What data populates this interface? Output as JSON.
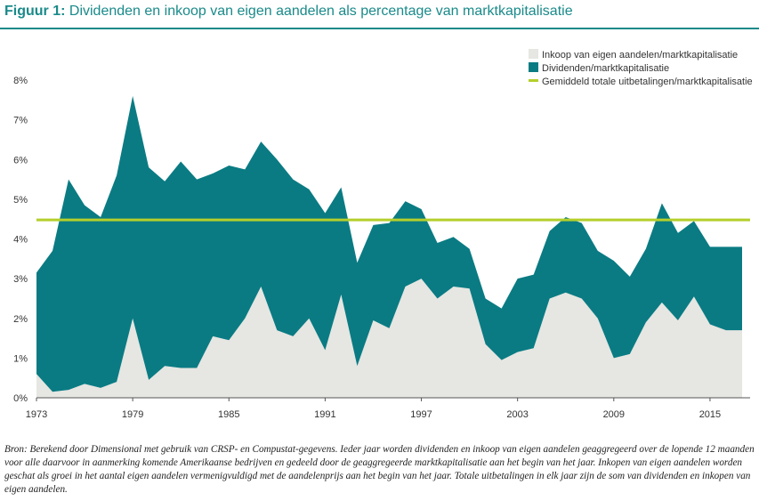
{
  "figure": {
    "number": "Figuur 1:",
    "title": "Dividenden en inkoop van eigen aandelen als percentage van marktkapitalisatie",
    "source": "Bron: Berekend door Dimensional met gebruik van CRSP- en Compustat-gegevens. Ieder jaar worden dividenden en inkoop van eigen aandelen geaggregeerd over de lopende 12 maanden voor alle daarvoor in aanmerking komende Amerikaanse bedrijven en gedeeld door de geaggregeerde marktkapitalisatie aan het begin van het jaar. Inkopen van eigen aandelen worden geschat als groei in het aantal eigen aandelen vermenigvuldigd met de aandelenprijs aan het begin van het jaar. Totale uitbetalingen in elk jaar zijn de som van dividenden en inkopen van eigen aandelen."
  },
  "chart_data": {
    "type": "area",
    "stacked": true,
    "x": [
      1973,
      1974,
      1975,
      1976,
      1977,
      1978,
      1979,
      1980,
      1981,
      1982,
      1983,
      1984,
      1985,
      1986,
      1987,
      1988,
      1989,
      1990,
      1991,
      1992,
      1993,
      1994,
      1995,
      1996,
      1997,
      1998,
      1999,
      2000,
      2001,
      2002,
      2003,
      2004,
      2005,
      2006,
      2007,
      2008,
      2009,
      2010,
      2011,
      2012,
      2013,
      2014,
      2015,
      2016,
      2017
    ],
    "xlim": [
      1973,
      2017.5
    ],
    "ylim": [
      0,
      8
    ],
    "x_ticks": [
      1973,
      1979,
      1985,
      1991,
      1997,
      2003,
      2009,
      2015
    ],
    "y_ticks": [
      0,
      1,
      2,
      3,
      4,
      5,
      6,
      7,
      8
    ],
    "y_tick_labels": [
      "0%",
      "1%",
      "2%",
      "3%",
      "4%",
      "5%",
      "6%",
      "7%",
      "8%"
    ],
    "legend_position": "top-right",
    "grid": false,
    "series": [
      {
        "name": "Inkoop van eigen aandelen/marktkapitalisatie",
        "color": "#e6e6e2",
        "values": [
          0.6,
          0.15,
          0.2,
          0.35,
          0.25,
          0.4,
          2.0,
          0.45,
          0.8,
          0.75,
          0.75,
          1.55,
          1.45,
          2.0,
          2.8,
          1.7,
          1.55,
          2.0,
          1.2,
          2.6,
          0.8,
          1.95,
          1.75,
          2.8,
          3.0,
          2.5,
          2.8,
          2.75,
          1.35,
          0.95,
          1.15,
          1.25,
          2.5,
          2.65,
          2.5,
          2.0,
          1.0,
          1.1,
          1.9,
          2.4,
          1.95,
          2.55,
          1.85,
          1.7,
          1.7
        ]
      },
      {
        "name": "Dividenden/marktkapitalisatie",
        "color": "#0a7b83",
        "values": [
          2.55,
          3.55,
          5.3,
          4.5,
          4.3,
          5.2,
          5.6,
          5.35,
          4.65,
          5.2,
          4.75,
          4.1,
          4.4,
          3.75,
          3.65,
          4.3,
          3.95,
          3.25,
          3.45,
          2.7,
          2.6,
          2.4,
          2.65,
          2.15,
          1.75,
          1.4,
          1.25,
          1.0,
          1.15,
          1.3,
          1.85,
          1.85,
          1.7,
          1.9,
          1.9,
          1.7,
          2.45,
          1.95,
          1.85,
          2.5,
          2.2,
          1.9,
          1.95,
          2.1,
          2.1
        ]
      },
      {
        "name": "Gemiddeld totale uitbetalingen/marktkapitalisatie",
        "color": "#b5cf2b",
        "type": "hline",
        "value": 4.48
      }
    ]
  }
}
